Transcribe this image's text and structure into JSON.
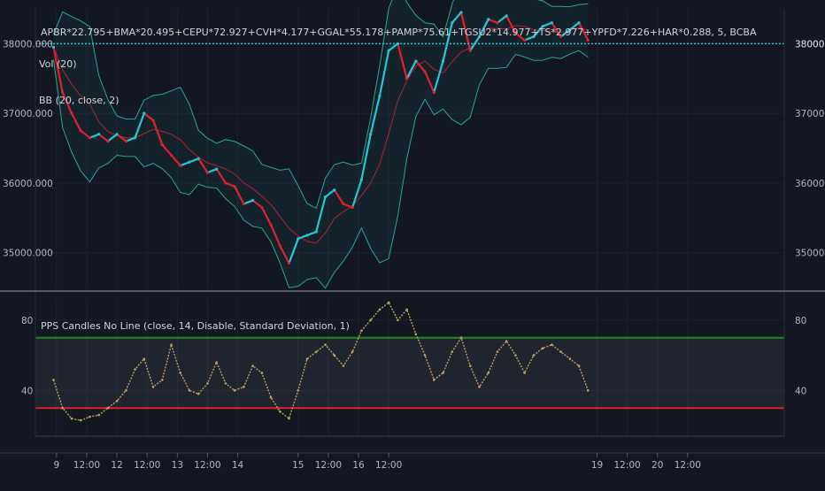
{
  "main_pane": {
    "symbol_formula": "APBR*22.795+BMA*20.495+CEPU*72.927+CVH*4.177+GGAL*55.178+PAMP*75.61+TGSU2*14.977+TS*2.977+YPFD*7.226+HAR*0.288, 5, BCBA",
    "indicator_labels": [
      "Vol (20)",
      "BB (20, close, 2)"
    ],
    "price_line_value": 38000,
    "price_line_label": "38000.000",
    "y_tick_labels": [
      "38000.000",
      "37000.000",
      "36000.000",
      "35000.000"
    ]
  },
  "oscillator_pane": {
    "title": "PPS Candles No Line (close, 14, Disable, Standard Deviation, 1)",
    "upper_band": 70,
    "lower_band": 30,
    "y_tick_labels": [
      "80",
      "40"
    ]
  },
  "x_axis": {
    "tick_labels": [
      "9",
      "12:00",
      "12",
      "12:00",
      "13",
      "12:00",
      "14",
      "15",
      "12:00",
      "16",
      "12:00",
      "19",
      "12:00",
      "20",
      "12:00"
    ]
  },
  "colors": {
    "background": "#131722",
    "grid": "#1e2230",
    "up": "#26c6da",
    "down": "#e0202a",
    "bb_band": "#26a69a",
    "bb_basis": "#e0202a",
    "price_line": "#26c6da",
    "osc_line": "#c0a060",
    "osc_upper": "#1e8a1e",
    "osc_lower": "#e0202a",
    "text": "#d1d4dc",
    "axis_text": "#b2b5be",
    "divider": "#555a66"
  },
  "chart_data": [
    {
      "type": "line",
      "title": "",
      "series": [
        {
          "name": "",
          "x": [
            8.95,
            9.1,
            9.25,
            9.4,
            9.55,
            9.7,
            9.85,
            10.0,
            10.15,
            10.3,
            10.45,
            10.6,
            10.75,
            10.9,
            11.05,
            11.2,
            11.35,
            11.5,
            11.65,
            11.8,
            11.95,
            12.1,
            12.25,
            12.4,
            12.55,
            12.7,
            12.85,
            13.0,
            13.15,
            13.3,
            13.45,
            13.6,
            13.75,
            13.9,
            14.05,
            14.2,
            14.35,
            14.5,
            14.65,
            14.8,
            14.95,
            15.1,
            15.25,
            15.4,
            15.55,
            15.7,
            15.85,
            16.0,
            16.15,
            16.3,
            16.45,
            16.6,
            16.75,
            16.9,
            17.05,
            17.2,
            17.35,
            17.5,
            17.65,
            17.8
          ],
          "values": [
            37950,
            37300,
            37000,
            36750,
            36650,
            36700,
            36600,
            36700,
            36600,
            36650,
            37000,
            36900,
            36550,
            36400,
            36250,
            36300,
            36350,
            36150,
            36200,
            36000,
            35950,
            35700,
            35750,
            35650,
            35400,
            35100,
            34850,
            35200,
            35250,
            35300,
            35800,
            35900,
            35700,
            35650,
            36050,
            36700,
            37250,
            37900,
            38000,
            37500,
            37750,
            37600,
            37300,
            37750,
            38300,
            38450,
            37900,
            38100,
            38350,
            38300,
            38400,
            38150,
            38050,
            38100,
            38250,
            38300,
            38100,
            38200,
            38300,
            38050
          ]
        }
      ],
      "xlim": [
        8.65,
        21.05
      ],
      "ylim": [
        34500,
        38500
      ],
      "grid": true
    },
    {
      "type": "line",
      "title": "",
      "series": [
        {
          "name": "",
          "x": [
            8.95,
            9.1,
            9.25,
            9.4,
            9.55,
            9.7,
            9.85,
            10.0,
            10.15,
            10.3,
            10.45,
            10.6,
            10.75,
            10.9,
            11.05,
            11.2,
            11.35,
            11.5,
            11.65,
            11.8,
            11.95,
            12.1,
            12.25,
            12.4,
            12.55,
            12.7,
            12.85,
            13.0,
            13.15,
            13.3,
            13.45,
            13.6,
            13.75,
            13.9,
            14.05,
            14.2,
            14.35,
            14.5,
            14.65,
            14.8,
            14.95,
            15.1,
            15.25,
            15.4,
            15.55,
            15.7,
            15.85,
            16.0,
            16.15,
            16.3,
            16.45,
            16.6,
            16.75,
            16.9,
            17.05,
            17.2,
            17.35,
            17.5,
            17.65,
            17.8
          ],
          "values": [
            46,
            30,
            24,
            23,
            25,
            26,
            30,
            34,
            40,
            52,
            58,
            42,
            46,
            66,
            50,
            40,
            38,
            44,
            56,
            44,
            40,
            42,
            54,
            50,
            36,
            28,
            24,
            40,
            58,
            62,
            66,
            60,
            54,
            62,
            74,
            80,
            86,
            90,
            80,
            86,
            72,
            60,
            46,
            50,
            62,
            70,
            54,
            42,
            50,
            62,
            68,
            60,
            50,
            60,
            64,
            66,
            62,
            58,
            54,
            40
          ]
        }
      ],
      "xlim": [
        8.65,
        21.05
      ],
      "ylim": [
        14,
        92
      ],
      "grid": true
    }
  ]
}
